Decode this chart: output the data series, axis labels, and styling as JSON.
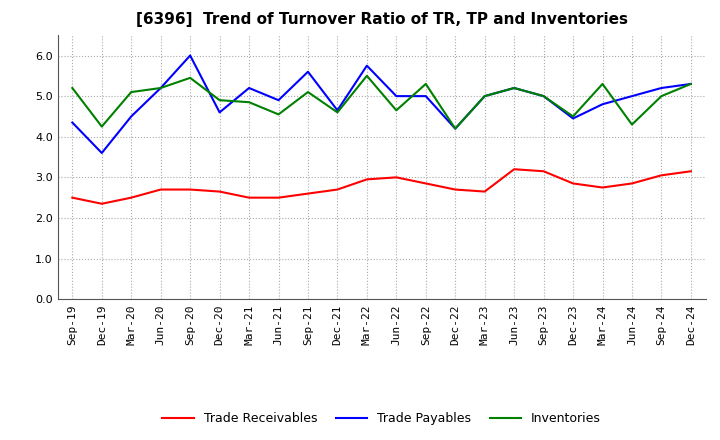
{
  "title": "[6396]  Trend of Turnover Ratio of TR, TP and Inventories",
  "ylim": [
    0.0,
    6.5
  ],
  "yticks": [
    0.0,
    1.0,
    2.0,
    3.0,
    4.0,
    5.0,
    6.0
  ],
  "categories": [
    "Sep-19",
    "Dec-19",
    "Mar-20",
    "Jun-20",
    "Sep-20",
    "Dec-20",
    "Mar-21",
    "Jun-21",
    "Sep-21",
    "Dec-21",
    "Mar-22",
    "Jun-22",
    "Sep-22",
    "Dec-22",
    "Mar-23",
    "Jun-23",
    "Sep-23",
    "Dec-23",
    "Mar-24",
    "Jun-24",
    "Sep-24",
    "Dec-24"
  ],
  "trade_receivables": [
    2.5,
    2.35,
    2.5,
    2.7,
    2.7,
    2.65,
    2.5,
    2.5,
    2.6,
    2.7,
    2.95,
    3.0,
    2.85,
    2.7,
    2.65,
    3.2,
    3.15,
    2.85,
    2.75,
    2.85,
    3.05,
    3.15
  ],
  "trade_payables": [
    4.35,
    3.6,
    4.5,
    5.2,
    6.0,
    4.6,
    5.2,
    4.9,
    5.6,
    4.65,
    5.75,
    5.0,
    5.0,
    4.2,
    5.0,
    5.2,
    5.0,
    4.45,
    4.8,
    5.0,
    5.2,
    5.3
  ],
  "inventories": [
    5.2,
    4.25,
    5.1,
    5.2,
    5.45,
    4.9,
    4.85,
    4.55,
    5.1,
    4.6,
    5.5,
    4.65,
    5.3,
    4.2,
    5.0,
    5.2,
    5.0,
    4.5,
    5.3,
    4.3,
    5.0,
    5.3
  ],
  "tr_color": "#ff0000",
  "tp_color": "#0000ff",
  "inv_color": "#008000",
  "background_color": "#ffffff",
  "grid_color": "#aaaaaa",
  "title_fontsize": 11,
  "legend_fontsize": 9,
  "tick_fontsize": 8
}
